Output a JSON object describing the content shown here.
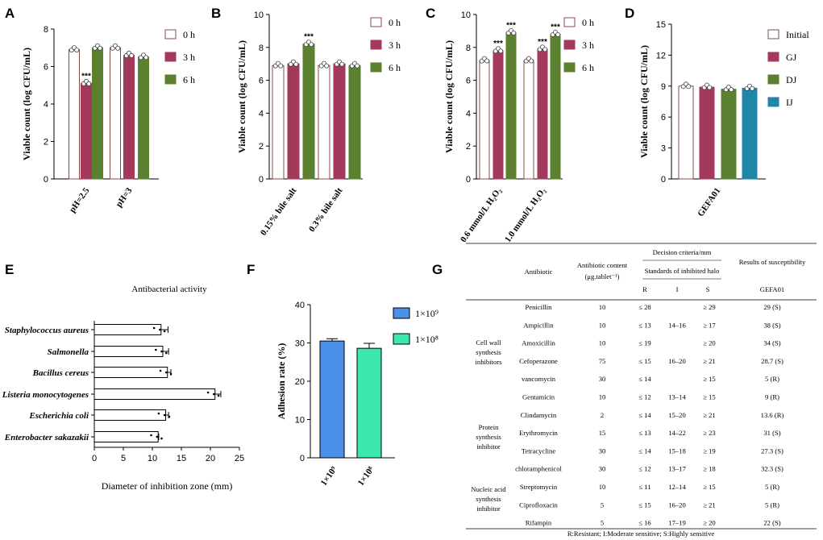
{
  "panels": {
    "A": "A",
    "B": "B",
    "C": "C",
    "D": "D",
    "E": "E",
    "F": "F",
    "G": "G"
  },
  "colors": {
    "white_fill": "#ffffff",
    "white_edge": "#8b4a4a",
    "crimson": "#a33a5c",
    "green": "#5a8030",
    "teal": "#1e86a8",
    "blue": "#4a90e8",
    "aqua": "#3de8b0"
  },
  "chart_data": [
    {
      "id": "A",
      "type": "bar",
      "ylabel": "Viable count (log CFU/mL)",
      "ylim": [
        0,
        8
      ],
      "yticks": [
        0,
        2,
        4,
        6,
        8
      ],
      "categories": [
        "pH=2.5",
        "pH=3"
      ],
      "series": [
        {
          "name": "0 h",
          "values": [
            6.9,
            7.0
          ],
          "color": "#ffffff",
          "edge": "#8b4a4a"
        },
        {
          "name": "3 h",
          "values": [
            5.1,
            6.6
          ],
          "color": "#a33a5c",
          "edge": "#a33a5c"
        },
        {
          "name": "6 h",
          "values": [
            7.0,
            6.5
          ],
          "color": "#5a8030",
          "edge": "#5a8030"
        }
      ],
      "annotations": [
        {
          "category": 0,
          "series": 1,
          "text": "***"
        }
      ]
    },
    {
      "id": "B",
      "type": "bar",
      "ylabel": "Viable count (log CFU/mL)",
      "ylim": [
        0,
        10
      ],
      "yticks": [
        0,
        2,
        4,
        6,
        8,
        10
      ],
      "categories": [
        "0.15% bile salt",
        "0.3% bile salt"
      ],
      "series": [
        {
          "name": "0 h",
          "values": [
            6.9,
            6.9
          ],
          "color": "#ffffff",
          "edge": "#8b4a4a"
        },
        {
          "name": "3 h",
          "values": [
            7.0,
            7.0
          ],
          "color": "#a33a5c",
          "edge": "#a33a5c"
        },
        {
          "name": "6 h",
          "values": [
            8.2,
            6.9
          ],
          "color": "#5a8030",
          "edge": "#5a8030"
        }
      ],
      "annotations": [
        {
          "category": 0,
          "series": 2,
          "text": "***"
        }
      ]
    },
    {
      "id": "C",
      "type": "bar",
      "ylabel": "Viable count (log CFU/mL)",
      "ylim": [
        0,
        10
      ],
      "yticks": [
        0,
        2,
        4,
        6,
        8,
        10
      ],
      "categories": [
        "0.6 mmol/L H₂O₂",
        "1.0 mmol/L H₂O₂"
      ],
      "series": [
        {
          "name": "0 h",
          "values": [
            7.2,
            7.2
          ],
          "color": "#ffffff",
          "edge": "#8b4a4a"
        },
        {
          "name": "3 h",
          "values": [
            7.8,
            7.9
          ],
          "color": "#a33a5c",
          "edge": "#a33a5c"
        },
        {
          "name": "6 h",
          "values": [
            8.9,
            8.8
          ],
          "color": "#5a8030",
          "edge": "#5a8030"
        }
      ],
      "annotations": [
        {
          "category": 0,
          "series": 1,
          "text": "***"
        },
        {
          "category": 0,
          "series": 2,
          "text": "***"
        },
        {
          "category": 1,
          "series": 1,
          "text": "***"
        },
        {
          "category": 1,
          "series": 2,
          "text": "***"
        }
      ]
    },
    {
      "id": "D",
      "type": "bar",
      "ylabel": "Viable count (log CFU/mL)",
      "ylim": [
        0,
        15
      ],
      "yticks": [
        0,
        3,
        6,
        9,
        12,
        15
      ],
      "categories": [
        "GEFA01"
      ],
      "series": [
        {
          "name": "Initial",
          "values": [
            9.0
          ],
          "color": "#ffffff",
          "edge": "#8b4a4a"
        },
        {
          "name": "GJ",
          "values": [
            8.9
          ],
          "color": "#a33a5c",
          "edge": "#a33a5c"
        },
        {
          "name": "DJ",
          "values": [
            8.7
          ],
          "color": "#5a8030",
          "edge": "#5a8030"
        },
        {
          "name": "IJ",
          "values": [
            8.8
          ],
          "color": "#1e86a8",
          "edge": "#1e86a8"
        }
      ],
      "annotations": []
    },
    {
      "id": "E",
      "type": "bar",
      "orientation": "horizontal",
      "title": "Antibacterial activity",
      "xlabel": "Diameter of inhibition zone (mm)",
      "xlim": [
        0,
        25
      ],
      "xticks": [
        0,
        5,
        10,
        15,
        20,
        25
      ],
      "categories": [
        "Staphylococcus aureus",
        "Salmonella",
        "Bacillus cereus",
        "Listeria monocytogenes",
        "Escherichia coli",
        "Enterobacter sakazakii"
      ],
      "values": [
        11.5,
        11.8,
        12.6,
        20.8,
        12.3,
        11.0
      ],
      "errors": [
        1.2,
        1.0,
        0.6,
        1.0,
        0.5,
        0.1
      ]
    },
    {
      "id": "F",
      "type": "bar",
      "ylabel": "Adhesion rate (%)",
      "ylim": [
        0,
        40
      ],
      "yticks": [
        0,
        10,
        20,
        30,
        40
      ],
      "categories": [
        "1×10⁹",
        "1×10⁸"
      ],
      "values": [
        30.5,
        28.6
      ],
      "errors": [
        0.6,
        1.3
      ],
      "legend": [
        "1×10⁹",
        "1×10⁸"
      ]
    }
  ],
  "table": {
    "header": {
      "antibiotic": "Antibiotic",
      "content_line1": "Antibiotic content",
      "content_line2": "(μg.tablet⁻¹)",
      "decision": "Decision criteria/mm",
      "standards": "Standards of inhibited halo",
      "r": "R",
      "i": "I",
      "s": "S",
      "results": "Results of susceptibility",
      "strain": "GEFA01"
    },
    "groups": [
      {
        "lines": [
          "Cell wall",
          "synthesis",
          "inhibitors"
        ]
      },
      {
        "lines": [
          "Protein",
          "synthesis",
          "inhibitor"
        ]
      },
      {
        "lines": [
          "Nucleic acid",
          "synthesis",
          "inhibitor"
        ]
      }
    ],
    "rows": [
      {
        "name": "Penicillin",
        "content": "10",
        "r": "≤ 28",
        "i": "",
        "s": "≥ 29",
        "res": "29 (S)"
      },
      {
        "name": "Ampicillin",
        "content": "10",
        "r": "≤ 13",
        "i": "14–16",
        "s": "≥ 17",
        "res": "38 (S)"
      },
      {
        "name": "Amoxicillin",
        "content": "10",
        "r": "≤ 19",
        "i": "",
        "s": "≥ 20",
        "res": "34 (S)"
      },
      {
        "name": "Cefoperazone",
        "content": "75",
        "r": "≤ 15",
        "i": "16–20",
        "s": "≥ 21",
        "res": "28.7 (S)"
      },
      {
        "name": "vancomycin",
        "content": "30",
        "r": "≤ 14",
        "i": "",
        "s": "≥ 15",
        "res": "5 (R)"
      },
      {
        "name": "Gentamicin",
        "content": "10",
        "r": "≤ 12",
        "i": "13–14",
        "s": "≥ 15",
        "res": "9 (R)"
      },
      {
        "name": "Clindamycin",
        "content": "2",
        "r": "≤ 14",
        "i": "15–20",
        "s": "≥ 21",
        "res": "13.6 (R)"
      },
      {
        "name": "Erythromycin",
        "content": "15",
        "r": "≤ 13",
        "i": "14–22",
        "s": "≥ 23",
        "res": "31 (S)"
      },
      {
        "name": "Tetracycline",
        "content": "30",
        "r": "≤ 14",
        "i": "15–18",
        "s": "≥ 19",
        "res": "27.3 (S)"
      },
      {
        "name": "chloramphenicol",
        "content": "30",
        "r": "≤ 12",
        "i": "13–17",
        "s": "≥ 18",
        "res": "32.3 (S)"
      },
      {
        "name": "Streptomycin",
        "content": "10",
        "r": "≤ 11",
        "i": "12–14",
        "s": "≥ 15",
        "res": "5 (R)"
      },
      {
        "name": "Ciprofloxacin",
        "content": "5",
        "r": "≤ 15",
        "i": "16–20",
        "s": "≥ 21",
        "res": "5 (R)"
      },
      {
        "name": "Rifampin",
        "content": "5",
        "r": "≤ 16",
        "i": "17–19",
        "s": "≥ 20",
        "res": "22 (S)"
      }
    ],
    "footnote": "R:Resistant; I:Moderate sensitive; S:Highly sensitive"
  }
}
